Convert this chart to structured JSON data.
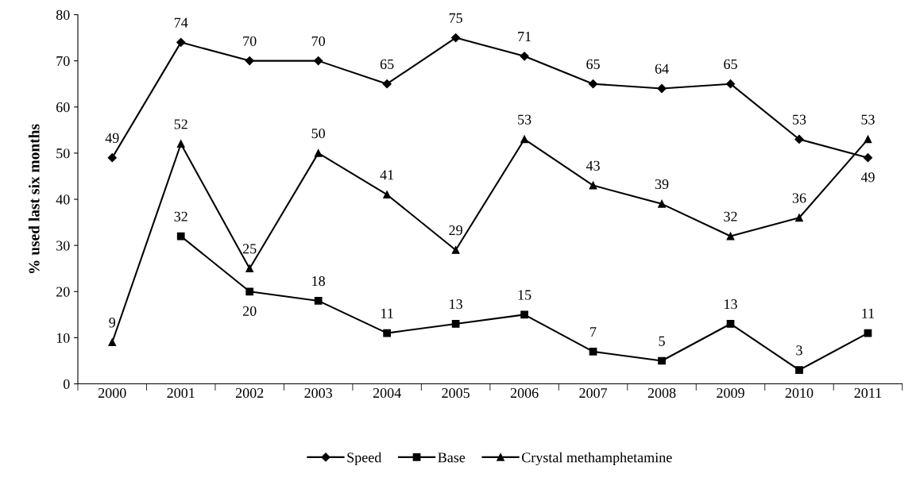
{
  "chart_data": {
    "type": "line",
    "ylabel": "% used last six months",
    "categories": [
      "2000",
      "2001",
      "2002",
      "2003",
      "2004",
      "2005",
      "2006",
      "2007",
      "2008",
      "2009",
      "2010",
      "2011"
    ],
    "series": [
      {
        "name": "Speed",
        "color": "#000000",
        "marker": "diamond",
        "values": [
          49,
          74,
          70,
          70,
          65,
          75,
          71,
          65,
          64,
          65,
          53,
          49
        ]
      },
      {
        "name": "Base",
        "color": "#000000",
        "marker": "square",
        "values": [
          null,
          32,
          20,
          18,
          11,
          13,
          15,
          7,
          5,
          13,
          3,
          11
        ]
      },
      {
        "name": "Crystal methamphetamine",
        "color": "#000000",
        "marker": "triangle",
        "values": [
          9,
          52,
          25,
          50,
          41,
          29,
          53,
          43,
          39,
          32,
          36,
          53
        ]
      }
    ],
    "ylim": [
      0,
      80
    ],
    "yticks": [
      0,
      10,
      20,
      30,
      40,
      50,
      60,
      70,
      80
    ],
    "grid": false,
    "legend": "bottom",
    "data_labels": true,
    "line_style": "solid"
  }
}
